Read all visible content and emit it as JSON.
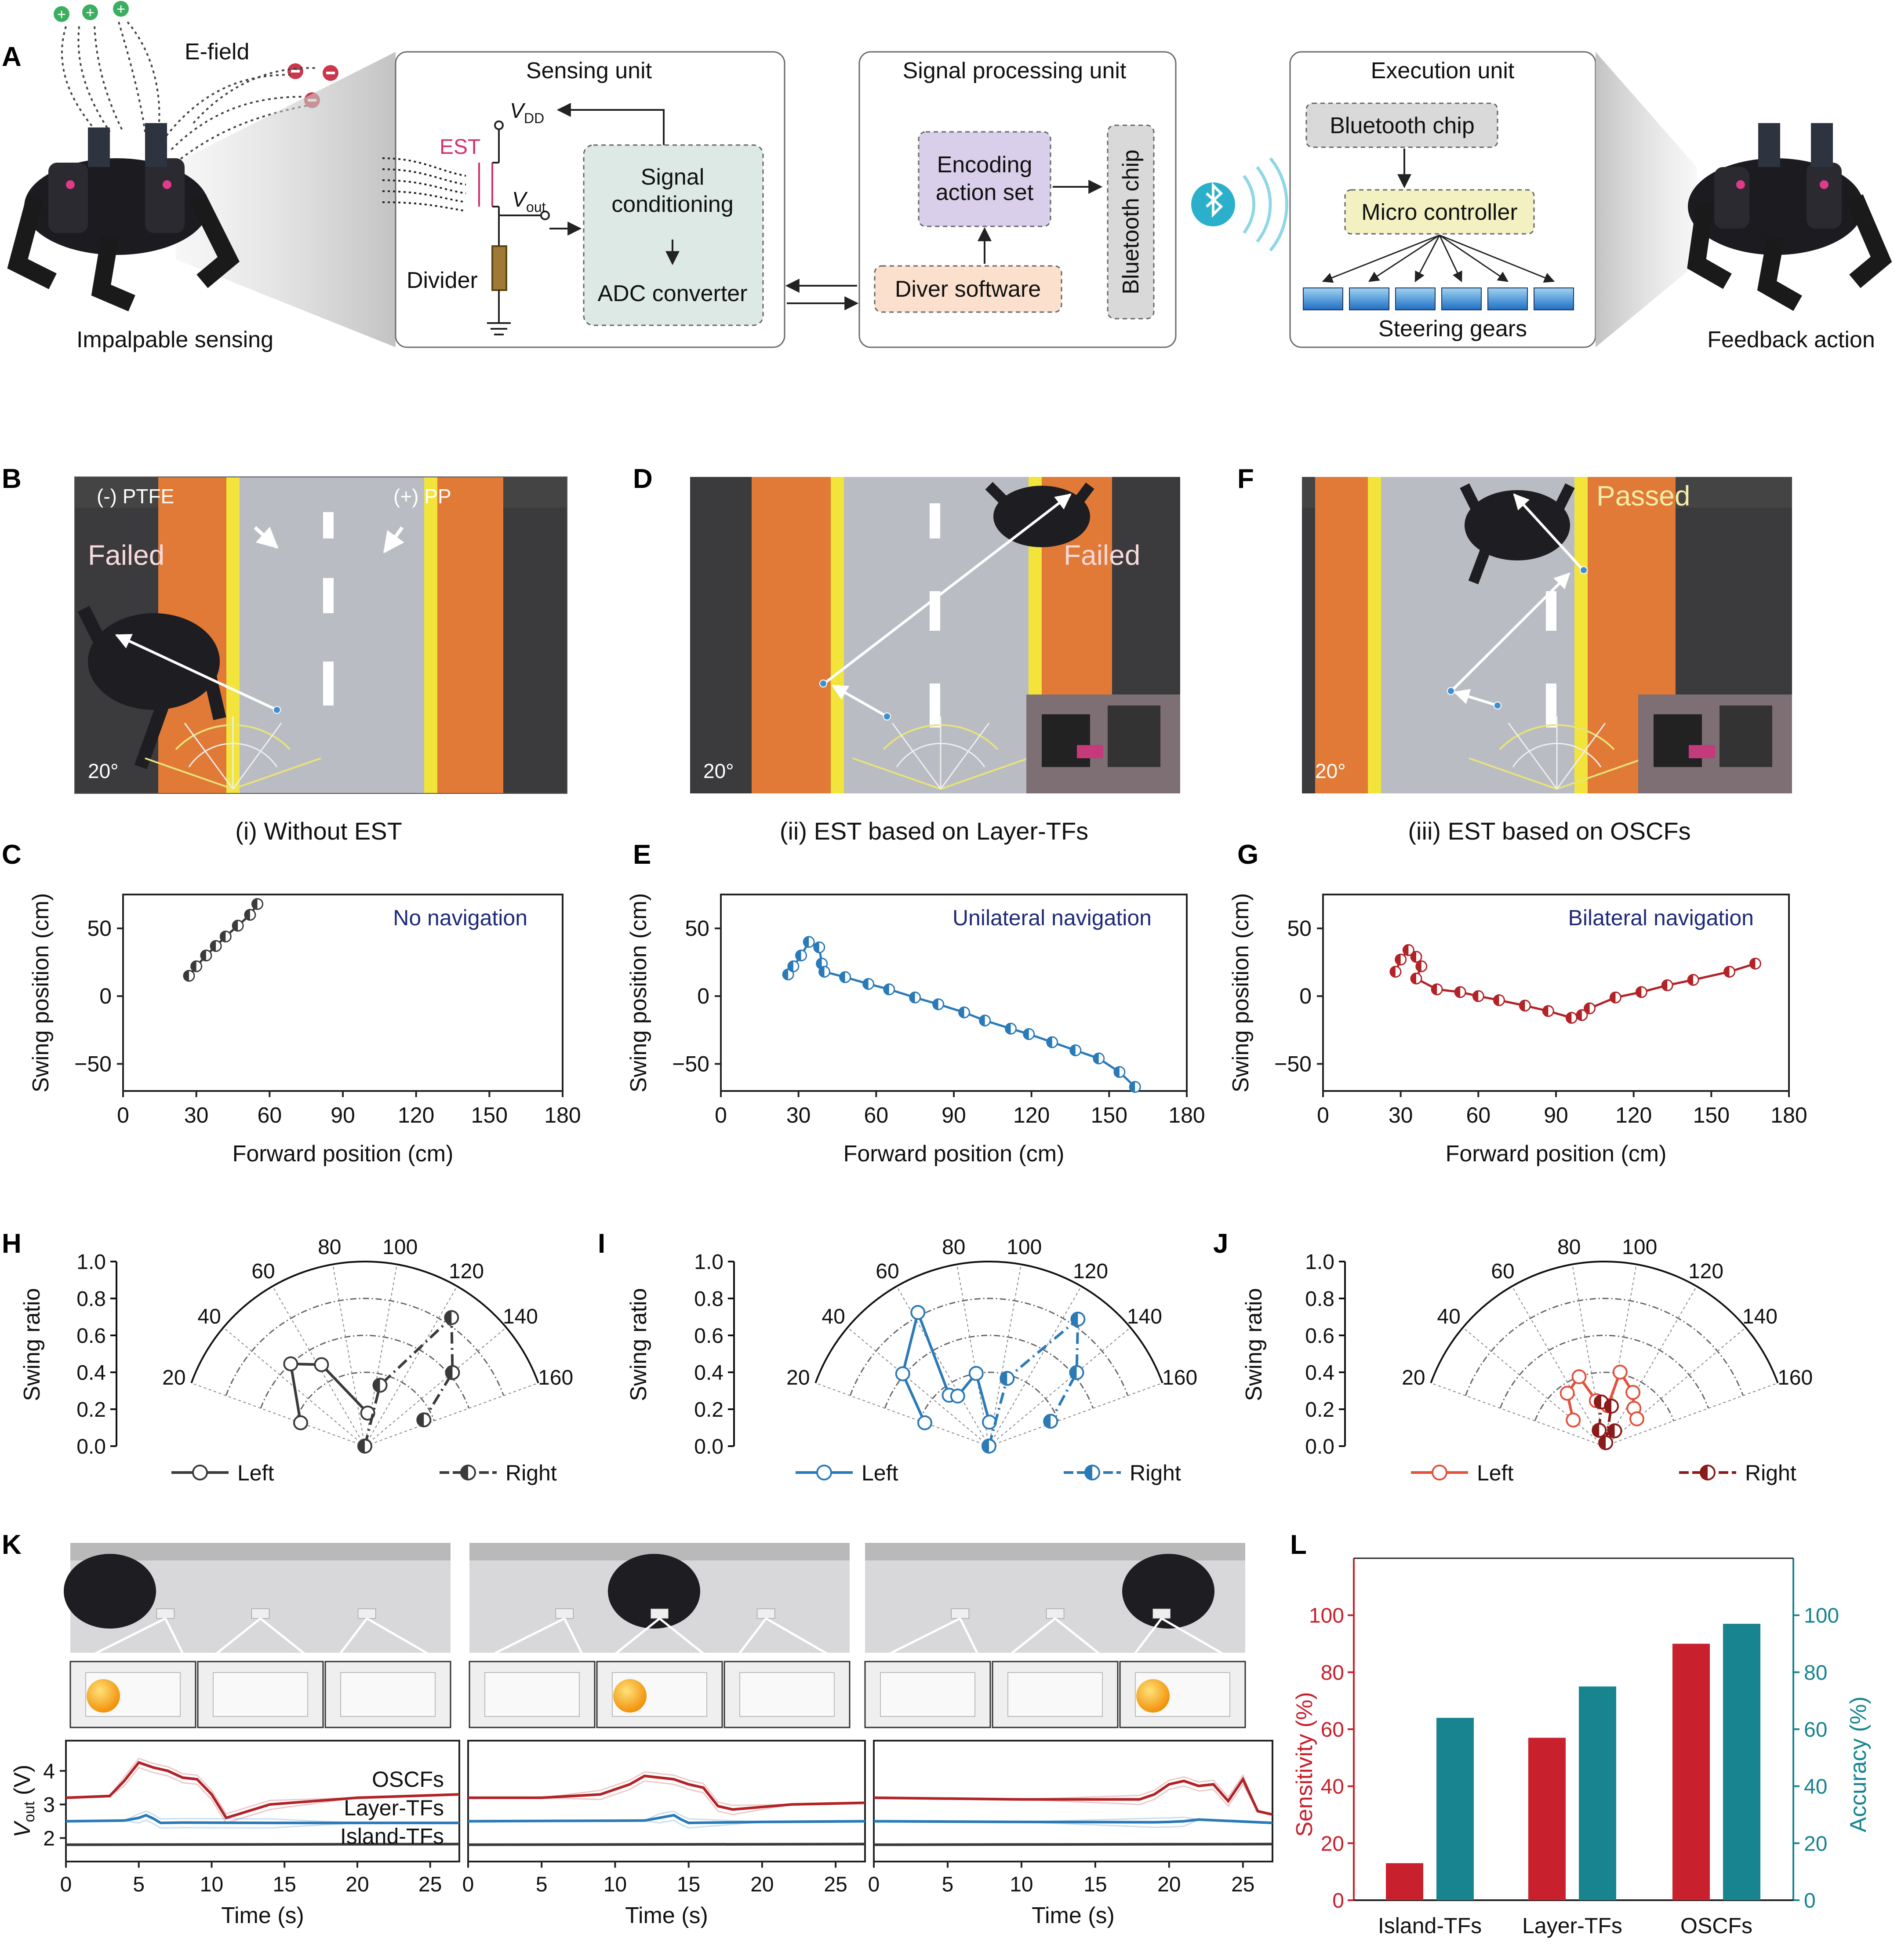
{
  "panel_labels": {
    "A": "A",
    "B": "B",
    "C": "C",
    "D": "D",
    "E": "E",
    "F": "F",
    "G": "G",
    "H": "H",
    "I": "I",
    "J": "J",
    "K": "K",
    "L": "L"
  },
  "panel_a": {
    "robot_left_caption": "Impalpable sensing",
    "robot_right_caption": "Feedback action",
    "efield_label": "E-field",
    "sensing_unit": {
      "title": "Sensing unit",
      "est": "EST",
      "vdd": "V",
      "vdd_sub": "DD",
      "vout": "V",
      "vout_sub": "out",
      "divider": "Divider",
      "box_line1": "Signal",
      "box_line2": "conditioning",
      "box_line3": "ADC converter"
    },
    "signal_unit": {
      "title": "Signal processing unit",
      "encoding_line1": "Encoding",
      "encoding_line2": "action set",
      "driver": "Diver software",
      "bluetooth": "Bluetooth chip"
    },
    "execution_unit": {
      "title": "Execution unit",
      "bluetooth": "Bluetooth chip",
      "micro": "Micro controller",
      "gears": "Steering gears"
    }
  },
  "photos": {
    "B": {
      "ptfe": "(-) PTFE",
      "pp": "(+) PP",
      "status": "Failed",
      "angle": "20°"
    },
    "D": {
      "status": "Failed",
      "angle": "20°"
    },
    "F": {
      "status": "Passed",
      "angle": "20°"
    }
  },
  "column_titles": [
    "(i) Without EST",
    "(ii) EST based on Layer-TFs",
    "(iii) EST based on OSCFs"
  ],
  "colors": {
    "black": "#3a3a3a",
    "blue": "#2a7ab8",
    "red": "#b22226",
    "light_red": "#e3503c",
    "teal": "#17848f"
  },
  "chart_data": [
    {
      "panel": "C",
      "type": "line",
      "title": "No navigation",
      "xlabel": "Forward position (cm)",
      "ylabel": "Swing position (cm)",
      "xlim": [
        0,
        180
      ],
      "ylim": [
        -70,
        75
      ],
      "xticks": [
        "0",
        "30",
        "60",
        "90",
        "120",
        "150",
        "180"
      ],
      "yticks": [
        "50",
        "0",
        "−50"
      ],
      "series": [
        {
          "name": "trajectory",
          "color": "#3a3a3a",
          "x": [
            27,
            30,
            34,
            38,
            42,
            47,
            52,
            55
          ],
          "y": [
            15,
            22,
            30,
            37,
            44,
            52,
            60,
            68
          ]
        }
      ]
    },
    {
      "panel": "E",
      "type": "line",
      "title": "Unilateral  navigation",
      "xlabel": "Forward position (cm)",
      "ylabel": "Swing position (cm)",
      "xlim": [
        0,
        180
      ],
      "ylim": [
        -70,
        75
      ],
      "xticks": [
        "0",
        "30",
        "60",
        "90",
        "120",
        "150",
        "180"
      ],
      "yticks": [
        "50",
        "0",
        "−50"
      ],
      "series": [
        {
          "name": "trajectory",
          "color": "#2a7ab8",
          "x": [
            26,
            28,
            31,
            34,
            38,
            39,
            40,
            48,
            57,
            65,
            75,
            84,
            94,
            102,
            112,
            119,
            128,
            137,
            146,
            154,
            160
          ],
          "y": [
            16,
            22,
            30,
            40,
            36,
            24,
            18,
            14,
            9,
            5,
            -1,
            -6,
            -12,
            -18,
            -24,
            -28,
            -34,
            -40,
            -46,
            -56,
            -67
          ]
        }
      ]
    },
    {
      "panel": "G",
      "type": "line",
      "title": "Bilateral  navigation",
      "xlabel": "Forward position (cm)",
      "ylabel": "Swing position (cm)",
      "xlim": [
        0,
        180
      ],
      "ylim": [
        -70,
        75
      ],
      "xticks": [
        "0",
        "30",
        "60",
        "90",
        "120",
        "150",
        "180"
      ],
      "yticks": [
        "50",
        "0",
        "−50"
      ],
      "series": [
        {
          "name": "trajectory",
          "color": "#b22226",
          "x": [
            28,
            30,
            33,
            36,
            38,
            36,
            44,
            53,
            60,
            68,
            78,
            87,
            96,
            100,
            103,
            113,
            123,
            133,
            143,
            157,
            167
          ],
          "y": [
            18,
            27,
            34,
            29,
            22,
            13,
            5,
            3,
            0,
            -3,
            -7,
            -11,
            -16,
            -14,
            -9,
            -1,
            3,
            8,
            12,
            18,
            24
          ]
        }
      ]
    },
    {
      "panel": "H",
      "type": "scatter",
      "subtype": "polar",
      "ylabel": "Swing ratio",
      "r_ticks": [
        "0.0",
        "0.2",
        "0.4",
        "0.6",
        "0.8",
        "1.0"
      ],
      "angle_ticks": [
        "20",
        "40",
        "60",
        "80",
        "100",
        "120",
        "140",
        "160"
      ],
      "legend": [
        "Left",
        "Right"
      ],
      "series": [
        {
          "name": "Left",
          "color": "#3a3a3a",
          "angle": [
            20,
            48,
            62,
            95
          ],
          "r": [
            0.37,
            0.6,
            0.5,
            0.18
          ]
        },
        {
          "name": "Right",
          "color": "#3a3a3a",
          "angle": [
            90,
            104,
            124,
            140,
            156
          ],
          "r": [
            0.0,
            0.34,
            0.84,
            0.62,
            0.35
          ]
        }
      ]
    },
    {
      "panel": "I",
      "type": "scatter",
      "subtype": "polar",
      "ylabel": "Swing ratio",
      "r_ticks": [
        "0.0",
        "0.2",
        "0.4",
        "0.6",
        "0.8",
        "1.0"
      ],
      "angle_ticks": [
        "20",
        "40",
        "60",
        "80",
        "100",
        "120",
        "140",
        "160"
      ],
      "legend": [
        "Left",
        "Right"
      ],
      "series": [
        {
          "name": "Left",
          "color": "#2a7ab8",
          "angle": [
            20,
            40,
            62,
            52,
            58,
            80,
            91
          ],
          "r": [
            0.37,
            0.61,
            0.82,
            0.35,
            0.32,
            0.4,
            0.13
          ]
        },
        {
          "name": "Right",
          "color": "#2a7ab8",
          "angle": [
            90,
            105,
            125,
            140,
            158
          ],
          "r": [
            0.0,
            0.38,
            0.84,
            0.62,
            0.36
          ]
        }
      ]
    },
    {
      "panel": "J",
      "type": "scatter",
      "subtype": "polar",
      "ylabel": "Swing ratio",
      "r_ticks": [
        "0.0",
        "0.2",
        "0.4",
        "0.6",
        "0.8",
        "1.0"
      ],
      "angle_ticks": [
        "20",
        "40",
        "60",
        "80",
        "100",
        "120",
        "140",
        "160"
      ],
      "legend": [
        "Left",
        "Right"
      ],
      "series": [
        {
          "name": "Left",
          "color": "#e3503c",
          "angle": [
            40,
            55,
            70,
            80,
            95,
            102,
            118,
            128,
            140
          ],
          "r": [
            0.22,
            0.35,
            0.4,
            0.25,
            0.22,
            0.41,
            0.33,
            0.26,
            0.23
          ]
        },
        {
          "name": "Right",
          "color": "#8b1a1a",
          "angle": [
            72,
            86,
            100,
            112,
            124
          ],
          "r": [
            0.09,
            0.24,
            0.22,
            0.02,
            0.1
          ]
        }
      ]
    },
    {
      "panel": "K",
      "type": "line",
      "ylabel": "V",
      "ylabel_sub": "out",
      "ylabel_unit": " (V)",
      "xlabel": "Time (s)",
      "xlim": [
        0,
        27
      ],
      "ylim": [
        1.3,
        4.9
      ],
      "xticks": [
        "0",
        "5",
        "10",
        "15",
        "20",
        "25"
      ],
      "yticks": [
        "4",
        "3",
        "2"
      ],
      "series_labels": [
        "OSCFs",
        "Layer-TFs",
        "Island-TFs"
      ],
      "subplots": [
        {
          "series": [
            {
              "name": "OSCFs",
              "color": "#b22226",
              "x": [
                0,
                3,
                4,
                5,
                6,
                7,
                8,
                9,
                10,
                11,
                14,
                20,
                27
              ],
              "y": [
                3.2,
                3.25,
                3.7,
                4.25,
                4.1,
                4.0,
                3.8,
                3.75,
                3.3,
                2.6,
                3.0,
                3.2,
                3.3
              ]
            },
            {
              "name": "Layer-TFs",
              "color": "#2a7ab8",
              "x": [
                0,
                4,
                5,
                5.5,
                6,
                6.5,
                8,
                14,
                20,
                27
              ],
              "y": [
                2.5,
                2.52,
                2.6,
                2.68,
                2.58,
                2.45,
                2.46,
                2.45,
                2.45,
                2.45
              ]
            },
            {
              "name": "Island-TFs",
              "color": "#3a3a3a",
              "x": [
                0,
                27
              ],
              "y": [
                1.8,
                1.82
              ]
            }
          ]
        },
        {
          "series": [
            {
              "name": "OSCFs",
              "color": "#b22226",
              "x": [
                0,
                5,
                9,
                11,
                12,
                13,
                14,
                15,
                16,
                17,
                18,
                22,
                27
              ],
              "y": [
                3.2,
                3.2,
                3.3,
                3.6,
                3.85,
                3.8,
                3.75,
                3.6,
                3.5,
                2.95,
                2.85,
                3.0,
                3.05
              ]
            },
            {
              "name": "Layer-TFs",
              "color": "#2a7ab8",
              "x": [
                0,
                12,
                13,
                14,
                14.5,
                15,
                20,
                27
              ],
              "y": [
                2.5,
                2.52,
                2.6,
                2.68,
                2.55,
                2.45,
                2.48,
                2.5
              ]
            },
            {
              "name": "Island-TFs",
              "color": "#3a3a3a",
              "x": [
                0,
                27
              ],
              "y": [
                1.8,
                1.82
              ]
            }
          ]
        },
        {
          "series": [
            {
              "name": "OSCFs",
              "color": "#b22226",
              "x": [
                0,
                10,
                18,
                19,
                20,
                21,
                22,
                23,
                24,
                25,
                26,
                27
              ],
              "y": [
                3.2,
                3.15,
                3.15,
                3.3,
                3.6,
                3.7,
                3.55,
                3.6,
                3.1,
                3.75,
                2.8,
                2.7
              ]
            },
            {
              "name": "Layer-TFs",
              "color": "#2a7ab8",
              "x": [
                0,
                10,
                19,
                20,
                21,
                22,
                27
              ],
              "y": [
                2.5,
                2.48,
                2.47,
                2.48,
                2.5,
                2.55,
                2.45
              ]
            },
            {
              "name": "Island-TFs",
              "color": "#3a3a3a",
              "x": [
                0,
                27
              ],
              "y": [
                1.8,
                1.82
              ]
            }
          ]
        }
      ]
    },
    {
      "panel": "L",
      "type": "bar",
      "categories": [
        "Island-TFs",
        "Layer-TFs",
        "OSCFs"
      ],
      "ylabel": "Sensitivity (%)",
      "y2label": "Accuracy (%)",
      "ylim": [
        0,
        120
      ],
      "yticks": [
        "0",
        "20",
        "40",
        "60",
        "80",
        "100"
      ],
      "series": [
        {
          "name": "Sensitivity (%)",
          "color": "#c8202c",
          "values": [
            13,
            57,
            90
          ]
        },
        {
          "name": "Accuracy (%)",
          "color": "#17848f",
          "values": [
            64,
            75,
            97
          ]
        }
      ]
    }
  ]
}
